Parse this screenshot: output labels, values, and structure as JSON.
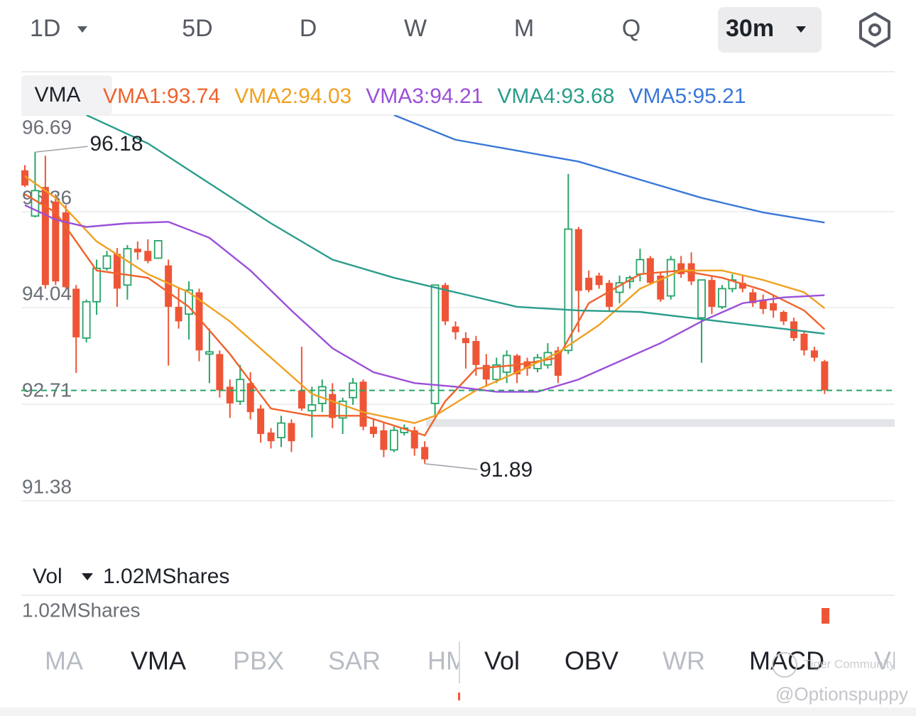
{
  "toolbar": {
    "periods": [
      "1D",
      "5D",
      "D",
      "W",
      "M",
      "Q"
    ],
    "selected": "30m"
  },
  "chart_data": {
    "type": "candlestick",
    "indicator": "VMA",
    "up_color": "#27a567",
    "down_color": "#ee5536",
    "ylim": [
      91.38,
      96.69
    ],
    "yticks": [
      96.69,
      95.36,
      94.04,
      92.71,
      91.38
    ],
    "grid": true,
    "open": [
      95.93,
      95.3,
      95.7,
      95.5,
      95.35,
      94.3,
      93.62,
      94.12,
      94.58,
      94.78,
      94.35,
      94.85,
      94.82,
      94.72,
      94.62,
      94.05,
      93.95,
      94.25,
      93.4,
      93.4,
      92.95,
      92.75,
      93.0,
      92.65,
      92.32,
      92.25,
      92.45,
      92.9,
      92.62,
      92.72,
      92.85,
      92.52,
      92.8,
      93.02,
      92.4,
      92.35,
      92.08,
      92.32,
      92.35,
      92.12,
      92.72,
      94.35,
      93.78,
      93.62,
      93.58,
      93.25,
      93.05,
      93.15,
      93.38,
      93.3,
      93.2,
      93.25,
      93.45,
      93.45,
      95.12,
      94.45,
      94.48,
      94.38,
      94.25,
      94.4,
      94.5,
      94.72,
      94.48,
      94.2,
      94.65,
      94.65,
      93.9,
      94.42,
      94.05,
      94.3,
      94.38,
      94.25,
      94.15,
      94.1,
      93.98,
      93.85,
      93.68,
      93.45,
      93.3
    ],
    "high": [
      96.0,
      96.18,
      96.13,
      95.6,
      95.45,
      94.35,
      94.15,
      94.7,
      94.82,
      94.86,
      94.9,
      94.95,
      94.98,
      94.97,
      94.7,
      94.3,
      94.4,
      94.3,
      93.75,
      93.45,
      93.05,
      93.25,
      93.15,
      92.7,
      92.38,
      92.55,
      92.5,
      93.5,
      92.95,
      93.05,
      93.0,
      92.8,
      93.07,
      93.05,
      92.5,
      92.45,
      92.4,
      92.43,
      92.4,
      92.2,
      94.35,
      94.38,
      93.85,
      93.7,
      93.65,
      93.4,
      93.35,
      93.45,
      93.4,
      93.35,
      93.4,
      93.55,
      93.5,
      95.88,
      95.15,
      94.55,
      94.52,
      94.42,
      94.48,
      94.48,
      94.85,
      94.75,
      94.52,
      94.75,
      94.75,
      94.8,
      94.42,
      94.48,
      94.35,
      94.5,
      94.48,
      94.3,
      94.22,
      94.2,
      94.0,
      93.9,
      93.72,
      93.5,
      93.32
    ],
    "low": [
      95.7,
      95.28,
      94.3,
      94.35,
      94.3,
      93.14,
      93.56,
      93.94,
      94.55,
      94.05,
      94.15,
      94.7,
      94.65,
      94.71,
      93.24,
      93.75,
      93.6,
      93.3,
      93.0,
      92.8,
      92.52,
      92.7,
      92.5,
      92.18,
      92.1,
      92.12,
      92.05,
      92.62,
      92.25,
      92.6,
      92.38,
      92.3,
      92.7,
      92.35,
      92.25,
      91.98,
      92.05,
      92.28,
      92.0,
      91.89,
      92.55,
      93.8,
      93.6,
      93.2,
      93.1,
      92.95,
      93.0,
      93.0,
      93.0,
      93.1,
      93.15,
      93.2,
      93.0,
      93.4,
      93.7,
      94.25,
      94.3,
      94.0,
      94.1,
      94.3,
      94.4,
      94.35,
      94.12,
      94.15,
      94.45,
      94.35,
      93.28,
      93.95,
      94.02,
      94.25,
      94.25,
      94.05,
      93.95,
      93.9,
      93.8,
      93.58,
      93.38,
      93.3,
      92.85
    ],
    "close": [
      95.72,
      95.65,
      94.35,
      94.4,
      94.32,
      93.63,
      94.12,
      94.58,
      94.75,
      94.3,
      94.85,
      94.8,
      94.68,
      94.96,
      94.05,
      93.85,
      94.28,
      93.45,
      93.43,
      92.9,
      92.72,
      93.05,
      92.6,
      92.3,
      92.2,
      92.45,
      92.2,
      92.65,
      92.7,
      92.95,
      92.52,
      92.75,
      93.0,
      92.4,
      92.3,
      92.08,
      92.35,
      92.38,
      92.1,
      91.95,
      94.35,
      93.85,
      93.7,
      93.55,
      93.25,
      93.05,
      93.25,
      93.38,
      93.12,
      93.2,
      93.35,
      93.42,
      93.1,
      95.12,
      94.27,
      94.28,
      94.35,
      94.05,
      94.38,
      94.45,
      94.7,
      94.38,
      94.15,
      94.7,
      94.5,
      94.4,
      94.42,
      94.05,
      94.3,
      94.42,
      94.3,
      94.1,
      94.02,
      94.0,
      93.85,
      93.62,
      93.45,
      93.35,
      92.9
    ],
    "series": [
      {
        "name": "VMA1:93.74",
        "color": "#f0622c",
        "x": [
          0,
          3,
          7,
          12,
          16,
          20,
          24,
          28,
          33,
          39,
          41,
          44,
          48,
          52,
          55,
          60,
          64,
          68,
          72,
          76,
          78
        ],
        "values": [
          95.6,
          95.35,
          94.55,
          94.45,
          94.05,
          93.4,
          92.65,
          92.55,
          92.55,
          92.28,
          92.75,
          93.2,
          93.25,
          93.35,
          94.1,
          94.5,
          94.55,
          94.45,
          94.28,
          94.0,
          93.74
        ]
      },
      {
        "name": "VMA2:94.03",
        "color": "#f0a020",
        "x": [
          0,
          3,
          7,
          12,
          16,
          20,
          24,
          28,
          33,
          38,
          40,
          44,
          48,
          52,
          56,
          60,
          64,
          68,
          72,
          76,
          78
        ],
        "values": [
          95.85,
          95.55,
          94.95,
          94.5,
          94.25,
          93.85,
          93.35,
          92.85,
          92.6,
          92.45,
          92.55,
          92.9,
          93.15,
          93.42,
          93.8,
          94.3,
          94.55,
          94.55,
          94.42,
          94.25,
          94.03
        ]
      },
      {
        "name": "VMA3:94.21",
        "color": "#9b4fd8",
        "x": [
          0,
          3,
          6,
          10,
          14,
          18,
          22,
          26,
          30,
          34,
          38,
          42,
          46,
          50,
          54,
          58,
          62,
          66,
          70,
          74,
          78
        ],
        "values": [
          95.45,
          95.25,
          95.15,
          95.2,
          95.22,
          95.0,
          94.55,
          94.0,
          93.48,
          93.15,
          93.0,
          92.95,
          92.88,
          92.88,
          93.05,
          93.3,
          93.55,
          93.85,
          94.1,
          94.18,
          94.21
        ]
      },
      {
        "name": "VMA4:93.68",
        "color": "#2a9d8a",
        "x": [
          6,
          12,
          18,
          24,
          30,
          36,
          42,
          48,
          54,
          60,
          66,
          72,
          78
        ],
        "values": [
          96.69,
          96.3,
          95.75,
          95.2,
          94.7,
          94.45,
          94.25,
          94.05,
          94.0,
          93.98,
          93.88,
          93.78,
          93.68
        ]
      },
      {
        "name": "VMA5:95.21",
        "color": "#3a78d8",
        "x": [
          36,
          42,
          48,
          54,
          60,
          66,
          72,
          78
        ],
        "values": [
          96.69,
          96.35,
          96.2,
          96.05,
          95.8,
          95.55,
          95.35,
          95.21
        ]
      }
    ],
    "high_label_index": 1,
    "low_label_index": 39
  },
  "volume_panel": {
    "title": "Vol",
    "current": "1.02MShares",
    "axis_label": "1.02MShares"
  },
  "indicator_tabs": {
    "main": [
      {
        "label": "MA",
        "active": false
      },
      {
        "label": "VMA",
        "active": true
      },
      {
        "label": "PBX",
        "active": false
      },
      {
        "label": "SAR",
        "active": false
      },
      {
        "label": "HM",
        "active": false
      }
    ],
    "sub": [
      {
        "label": "Vol",
        "active": true
      },
      {
        "label": "OBV",
        "active": true
      },
      {
        "label": "WR",
        "active": false
      },
      {
        "label": "MACD",
        "active": true
      },
      {
        "label": "VI",
        "active": false
      }
    ]
  },
  "watermark": [
    "Tiger Community",
    "@Optionspuppy"
  ]
}
